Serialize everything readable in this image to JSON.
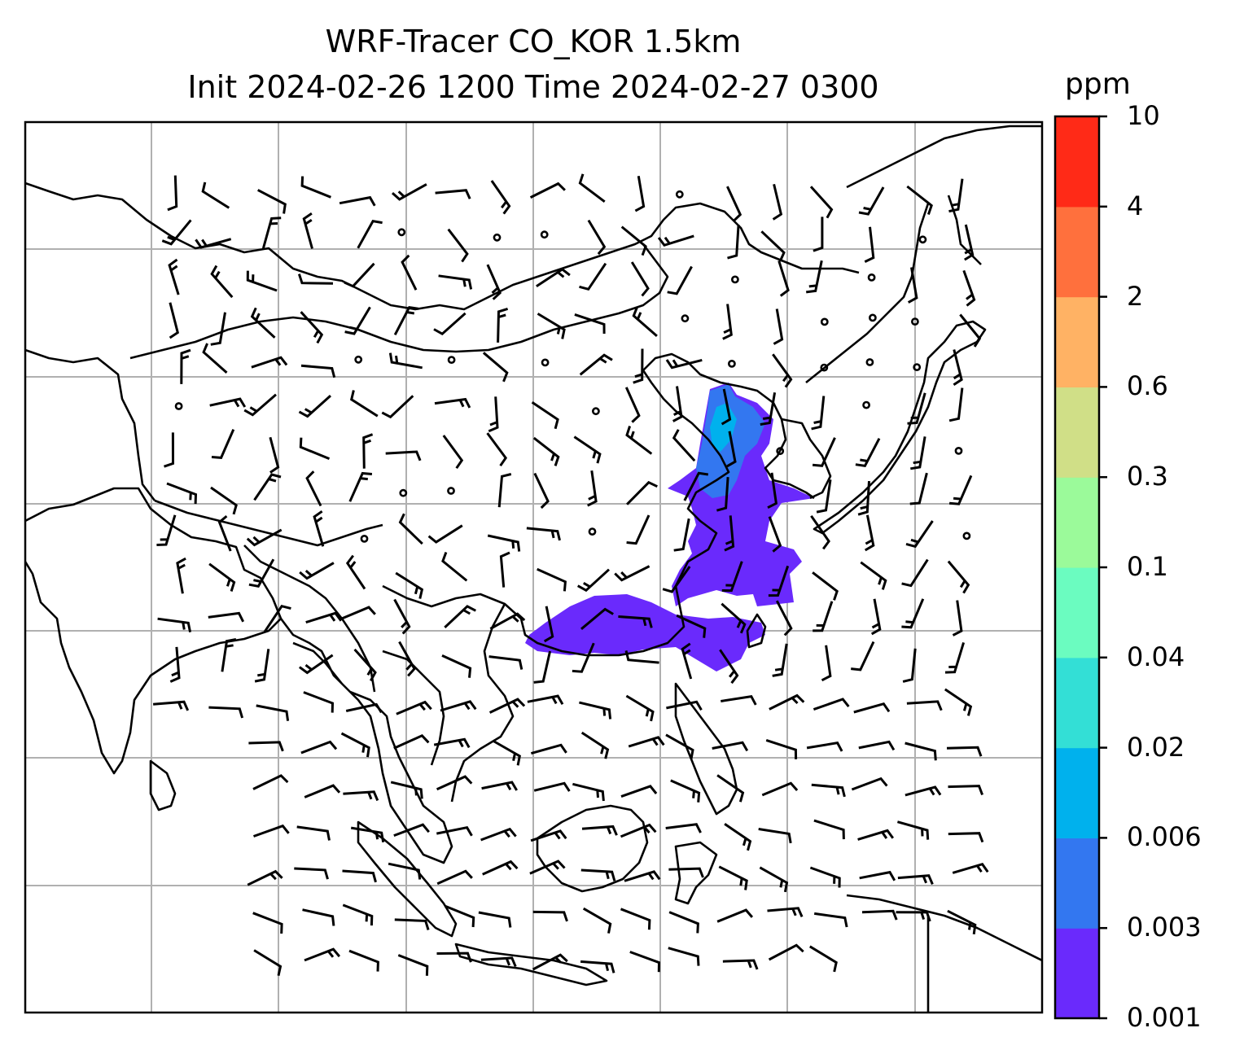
{
  "title": {
    "line1": "WRF-Tracer CO_KOR 1.5km",
    "line2": "Init 2024-02-26 1200 Time 2024-02-27 0300"
  },
  "colorbar": {
    "unit": "ppm",
    "levels": [
      "0.001",
      "0.003",
      "0.006",
      "0.02",
      "0.04",
      "0.1",
      "0.3",
      "0.6",
      "2",
      "4",
      "10"
    ],
    "colors": [
      "#6a2afc",
      "#3377f0",
      "#00b1ed",
      "#33dfd6",
      "#6bfcc0",
      "#9bfa9a",
      "#d0df87",
      "#ffb264",
      "#ff703d",
      "#ff2a17"
    ]
  },
  "map": {
    "field": "CO tracer concentration with wind barbs",
    "plume_color": "#6a2afc",
    "plume_core_color": "#3377f0",
    "coast_color": "#000000",
    "grid_color": "#b0b0b0"
  }
}
